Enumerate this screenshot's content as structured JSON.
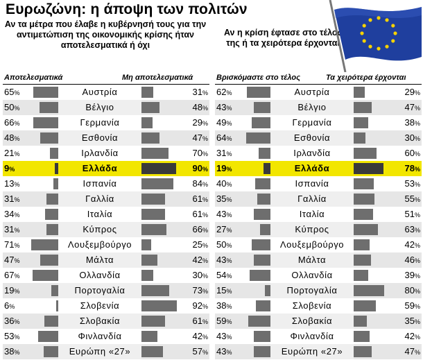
{
  "title": "Ευρωζώνη: η άποψη των πολιτών",
  "left_panel": {
    "subtitle": "Αν τα μέτρα που έλαβε η κυβέρνησή τους για την αντιμετώπιση της οικονομικής κρίσης ήταν αποτελεσματικά ή όχι",
    "left_header": "Αποτελεσματικά",
    "right_header": "Μη αποτελεσματικά"
  },
  "right_panel": {
    "subtitle": "Αν η κρίση έφτασε στο τέλος της ή τα χειρότερα έρχονται",
    "left_header": "Βρισκόμαστε στο τέλος",
    "right_header": "Τα χειρότερα έρχονται"
  },
  "percent_symbol": "%",
  "highlight_country": "Ελλάδα",
  "colors": {
    "highlight": "#f2e600",
    "bar": "#6e6e6e",
    "bar_highlight": "#3a3a3a"
  },
  "flag_icon": "eu-flag-icon",
  "chart_data": [
    {
      "type": "bar",
      "categories": [
        "Αυστρία",
        "Βέλγιο",
        "Γερμανία",
        "Εσθονία",
        "Ιρλανδία",
        "Ελλάδα",
        "Ισπανία",
        "Γαλλία",
        "Ιταλία",
        "Κύπρος",
        "Λουξεμβούργο",
        "Μάλτα",
        "Ολλανδία",
        "Πορτογαλία",
        "Σλοβενία",
        "Σλοβακία",
        "Φινλανδία",
        "Ευρώπη «27»"
      ],
      "series": [
        {
          "name": "Αποτελεσματικά",
          "values": [
            65,
            50,
            66,
            48,
            21,
            9,
            13,
            31,
            34,
            31,
            71,
            47,
            67,
            19,
            6,
            36,
            53,
            38
          ]
        },
        {
          "name": "Μη αποτελεσματικά",
          "values": [
            31,
            48,
            29,
            47,
            70,
            90,
            84,
            61,
            61,
            66,
            25,
            42,
            30,
            73,
            92,
            61,
            42,
            57
          ]
        }
      ],
      "ylim": [
        0,
        100
      ]
    },
    {
      "type": "bar",
      "categories": [
        "Αυστρία",
        "Βέλγιο",
        "Γερμανία",
        "Εσθονία",
        "Ιρλανδία",
        "Ελλάδα",
        "Ισπανία",
        "Γαλλία",
        "Ιταλία",
        "Κύπρος",
        "Λουξεμβούργο",
        "Μάλτα",
        "Ολλανδία",
        "Πορτογαλία",
        "Σλοβενία",
        "Σλοβακία",
        "Φινλανδία",
        "Ευρώπη «27»"
      ],
      "series": [
        {
          "name": "Βρισκόμαστε στο τέλος",
          "values": [
            62,
            43,
            49,
            64,
            31,
            19,
            40,
            35,
            43,
            27,
            50,
            43,
            54,
            15,
            38,
            59,
            43,
            43
          ]
        },
        {
          "name": "Τα χειρότερα έρχονται",
          "values": [
            29,
            47,
            38,
            30,
            60,
            78,
            53,
            55,
            51,
            63,
            42,
            46,
            39,
            80,
            59,
            35,
            42,
            47
          ]
        }
      ],
      "ylim": [
        0,
        100
      ]
    }
  ]
}
